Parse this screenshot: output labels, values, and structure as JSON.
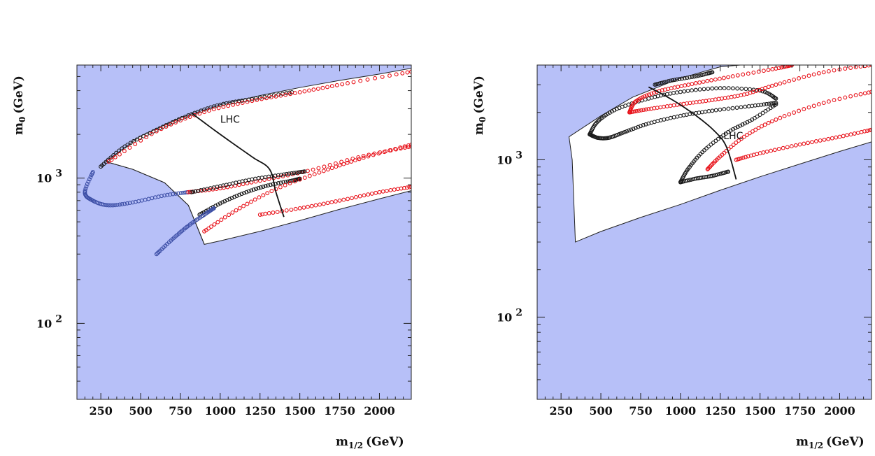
{
  "chart_data": [
    {
      "type": "scatter",
      "xlabel": "m",
      "xlabel_sub": "1/2",
      "xlabel_unit": "(GeV)",
      "ylabel": "m",
      "ylabel_sub": "0",
      "ylabel_unit": "(GeV)",
      "xlim": [
        100,
        2200
      ],
      "ylim": [
        30,
        6000
      ],
      "y_scale": "log",
      "x_ticks": [
        250,
        500,
        750,
        1000,
        1250,
        1500,
        1750,
        2000
      ],
      "x_tick_labels": [
        "250",
        "500",
        "750",
        "1000",
        "1250",
        "1500",
        "1750",
        "2000"
      ],
      "y_major_ticks": [
        100,
        1000
      ],
      "y_tick_labels": [
        {
          "base": "10",
          "exp": "2"
        },
        {
          "base": "10",
          "exp": "3"
        }
      ],
      "colors": {
        "excluded": "#b7c0f8",
        "allowed": "#ffffff",
        "red": "#e8131b",
        "black": "#1a1a1a",
        "blue": "#3c4ea6"
      },
      "allowed_region": {
        "upper": [
          [
            280,
            1300
          ],
          [
            500,
            1950
          ],
          [
            750,
            2600
          ],
          [
            1000,
            3200
          ],
          [
            1250,
            3700
          ],
          [
            1500,
            4200
          ],
          [
            1750,
            4700
          ],
          [
            2000,
            5200
          ],
          [
            2200,
            5700
          ]
        ],
        "lower": [
          [
            900,
            350
          ],
          [
            1000,
            370
          ],
          [
            1250,
            430
          ],
          [
            1500,
            510
          ],
          [
            1750,
            610
          ],
          [
            2000,
            720
          ],
          [
            2200,
            820
          ]
        ],
        "inner_boundary": [
          [
            280,
            1300
          ],
          [
            450,
            1150
          ],
          [
            650,
            930
          ],
          [
            800,
            650
          ],
          [
            900,
            350
          ]
        ]
      },
      "annotations": [
        {
          "text": "LHC",
          "points": [
            [
              820,
              2800
            ],
            [
              1000,
              2000
            ],
            [
              1200,
              1400
            ],
            [
              1310,
              1150
            ],
            [
              1350,
              800
            ],
            [
              1400,
              540
            ]
          ],
          "label_at": [
            1000,
            2400
          ]
        }
      ],
      "series": [
        {
          "color_key": "black",
          "points": [
            [
              250,
              1200
            ],
            [
              400,
              1650
            ],
            [
              600,
              2150
            ],
            [
              800,
              2700
            ],
            [
              1000,
              3200
            ],
            [
              1200,
              3500
            ],
            [
              1450,
              3900
            ]
          ]
        },
        {
          "color_key": "red",
          "points": [
            [
              300,
              1300
            ],
            [
              600,
              2100
            ],
            [
              900,
              2850
            ],
            [
              1200,
              3400
            ],
            [
              1500,
              3900
            ],
            [
              1800,
              4500
            ],
            [
              2200,
              5400
            ]
          ]
        },
        {
          "color_key": "blue",
          "points": [
            [
              200,
              1100
            ],
            [
              150,
              800
            ],
            [
              200,
              700
            ],
            [
              300,
              650
            ],
            [
              450,
              680
            ],
            [
              650,
              760
            ],
            [
              800,
              800
            ]
          ]
        },
        {
          "color_key": "red",
          "points": [
            [
              800,
              800
            ],
            [
              1000,
              850
            ],
            [
              1250,
              960
            ],
            [
              1550,
              1120
            ],
            [
              1900,
              1420
            ],
            [
              2200,
              1650
            ]
          ]
        },
        {
          "color_key": "black",
          "points": [
            [
              820,
              800
            ],
            [
              1000,
              880
            ],
            [
              1200,
              980
            ],
            [
              1400,
              1060
            ],
            [
              1530,
              1110
            ]
          ]
        },
        {
          "color_key": "black",
          "points": [
            [
              870,
              560
            ],
            [
              1000,
              670
            ],
            [
              1150,
              790
            ],
            [
              1300,
              890
            ],
            [
              1450,
              960
            ],
            [
              1500,
              990
            ]
          ]
        },
        {
          "color_key": "red",
          "points": [
            [
              900,
              430
            ],
            [
              1100,
              600
            ],
            [
              1350,
              840
            ],
            [
              1650,
              1120
            ],
            [
              1900,
              1380
            ],
            [
              2200,
              1700
            ]
          ]
        },
        {
          "color_key": "blue",
          "points": [
            [
              600,
              300
            ],
            [
              700,
              380
            ],
            [
              800,
              470
            ],
            [
              900,
              560
            ],
            [
              960,
              620
            ]
          ]
        },
        {
          "color_key": "red",
          "points": [
            [
              1250,
              560
            ],
            [
              1500,
              620
            ],
            [
              1750,
              700
            ],
            [
              2000,
              800
            ],
            [
              2200,
              870
            ]
          ]
        }
      ]
    },
    {
      "type": "scatter",
      "xlabel": "m",
      "xlabel_sub": "1/2",
      "xlabel_unit": "(GeV)",
      "ylabel": "m",
      "ylabel_sub": "0",
      "ylabel_unit": "(GeV)",
      "xlim": [
        100,
        2200
      ],
      "ylim": [
        30,
        4000
      ],
      "y_scale": "log",
      "x_ticks": [
        250,
        500,
        750,
        1000,
        1250,
        1500,
        1750,
        2000
      ],
      "x_tick_labels": [
        "250",
        "500",
        "750",
        "1000",
        "1250",
        "1500",
        "1750",
        "2000"
      ],
      "y_major_ticks": [
        100,
        1000
      ],
      "y_tick_labels": [
        {
          "base": "10",
          "exp": "2"
        },
        {
          "base": "10",
          "exp": "3"
        }
      ],
      "colors": {
        "excluded": "#b7c0f8",
        "allowed": "#ffffff",
        "red": "#e8131b",
        "black": "#1a1a1a"
      },
      "allowed_region": {
        "upper": [
          [
            300,
            1400
          ],
          [
            500,
            1900
          ],
          [
            700,
            2500
          ],
          [
            1000,
            3300
          ],
          [
            1250,
            3900
          ],
          [
            1500,
            4100
          ],
          [
            2200,
            4100
          ]
        ],
        "lower": [
          [
            300,
            1400
          ],
          [
            320,
            1000
          ],
          [
            340,
            300
          ],
          [
            500,
            350
          ],
          [
            750,
            430
          ],
          [
            1000,
            520
          ],
          [
            1250,
            640
          ],
          [
            1500,
            780
          ],
          [
            1750,
            940
          ],
          [
            2000,
            1130
          ],
          [
            2200,
            1300
          ]
        ]
      },
      "annotations": [
        {
          "text": "LHC",
          "points": [
            [
              800,
              2900
            ],
            [
              950,
              2400
            ],
            [
              1100,
              1900
            ],
            [
              1220,
              1500
            ],
            [
              1290,
              1200
            ],
            [
              1350,
              750
            ]
          ],
          "label_at": [
            1270,
            1350
          ]
        }
      ],
      "series": [
        {
          "color_key": "black",
          "points": [
            [
              430,
              1450
            ],
            [
              480,
              1380
            ],
            [
              550,
              1380
            ],
            [
              650,
              1500
            ],
            [
              800,
              1700
            ],
            [
              1000,
              1900
            ],
            [
              1200,
              2050
            ],
            [
              1450,
              2200
            ],
            [
              1600,
              2300
            ]
          ]
        },
        {
          "color_key": "black",
          "points": [
            [
              430,
              1450
            ],
            [
              480,
              1750
            ],
            [
              600,
              2100
            ],
            [
              800,
              2450
            ],
            [
              1000,
              2700
            ],
            [
              1250,
              2850
            ],
            [
              1500,
              2750
            ],
            [
              1600,
              2450
            ]
          ]
        },
        {
          "color_key": "red",
          "points": [
            [
              680,
              2000
            ],
            [
              720,
              2350
            ],
            [
              850,
              2700
            ],
            [
              1050,
              3000
            ],
            [
              1300,
              3350
            ],
            [
              1600,
              3800
            ],
            [
              1700,
              4000
            ]
          ]
        },
        {
          "color_key": "red",
          "points": [
            [
              680,
              2000
            ],
            [
              800,
              2100
            ],
            [
              1000,
              2250
            ],
            [
              1200,
              2400
            ],
            [
              1400,
              2600
            ],
            [
              1600,
              3000
            ],
            [
              1900,
              3600
            ],
            [
              2200,
              4000
            ]
          ]
        },
        {
          "color_key": "black",
          "points": [
            [
              1000,
              720
            ],
            [
              1050,
              880
            ],
            [
              1150,
              1150
            ],
            [
              1300,
              1500
            ],
            [
              1450,
              1800
            ],
            [
              1600,
              2250
            ]
          ]
        },
        {
          "color_key": "red",
          "points": [
            [
              1170,
              870
            ],
            [
              1250,
              1050
            ],
            [
              1400,
              1400
            ],
            [
              1600,
              1800
            ],
            [
              1900,
              2300
            ],
            [
              2200,
              2700
            ]
          ]
        },
        {
          "color_key": "black",
          "points": [
            [
              840,
              3000
            ],
            [
              950,
              3200
            ],
            [
              1100,
              3400
            ],
            [
              1200,
              3600
            ]
          ]
        },
        {
          "color_key": "black",
          "points": [
            [
              1000,
              720
            ],
            [
              1100,
              760
            ],
            [
              1200,
              790
            ],
            [
              1300,
              840
            ]
          ]
        },
        {
          "color_key": "red",
          "points": [
            [
              1350,
              1000
            ],
            [
              1500,
              1100
            ],
            [
              1750,
              1250
            ],
            [
              2000,
              1400
            ],
            [
              2200,
              1550
            ]
          ]
        }
      ]
    }
  ]
}
